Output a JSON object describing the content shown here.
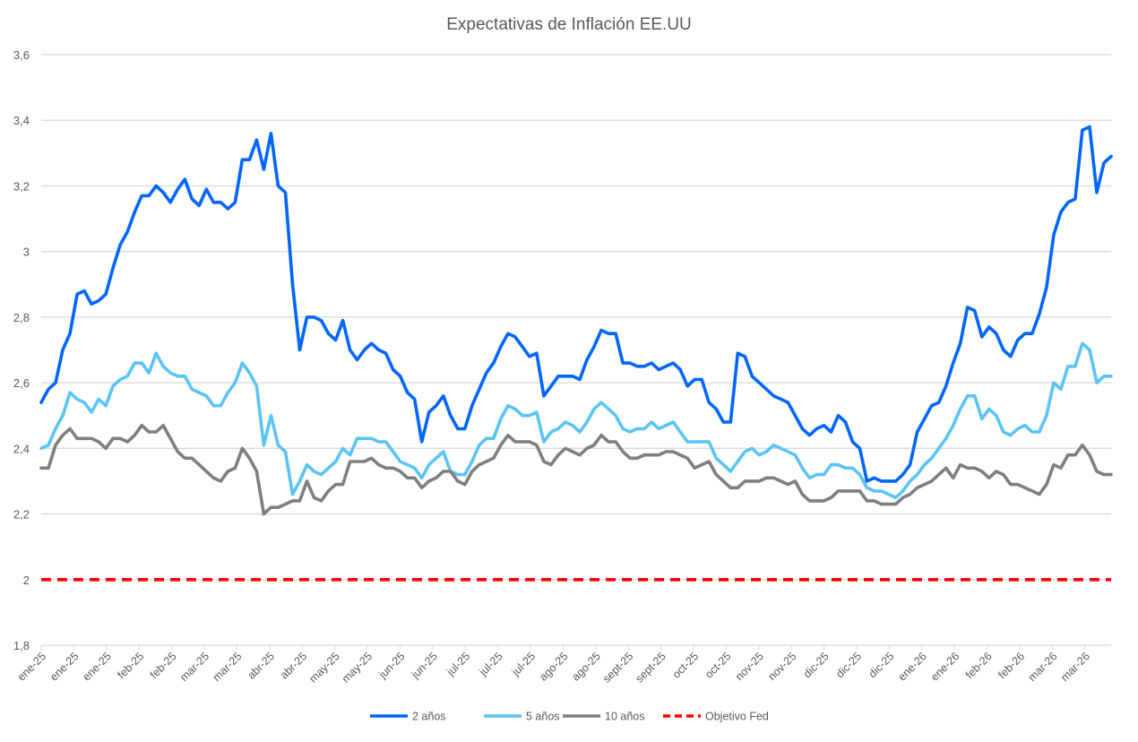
{
  "chart_data": {
    "type": "line",
    "title": "Expectativas de Inflación EE.UU",
    "xlabel": "",
    "ylabel": "",
    "ylim": [
      1.8,
      3.6
    ],
    "yticks": [
      "1,8",
      "2",
      "2,2",
      "2,4",
      "2,6",
      "2,8",
      "3",
      "3,2",
      "3,4",
      "3,6"
    ],
    "ytick_values": [
      1.8,
      2.0,
      2.2,
      2.4,
      2.6,
      2.8,
      3.0,
      3.2,
      3.4,
      3.6
    ],
    "grid": true,
    "legend_position": "bottom",
    "x_tick_labels": [
      "ene-25",
      "ene-25",
      "ene-25",
      "feb-25",
      "feb-25",
      "mar-25",
      "mar-25",
      "abr-25",
      "abr-25",
      "may-25",
      "may-25",
      "jun-25",
      "jun-25",
      "jul-25",
      "jul-25",
      "jul-25",
      "ago-25",
      "ago-25",
      "sept-25",
      "sept-25",
      "oct-25",
      "oct-25",
      "nov-25",
      "nov-25",
      "dic-25",
      "dic-25",
      "dic-25",
      "ene-26",
      "ene-26",
      "feb-26",
      "feb-26",
      "mar-26",
      "mar-26"
    ],
    "series": [
      {
        "name": "2 años",
        "color": "#0066FF",
        "style": "solid",
        "values": [
          2.54,
          2.58,
          2.6,
          2.7,
          2.75,
          2.87,
          2.88,
          2.84,
          2.85,
          2.87,
          2.95,
          3.02,
          3.06,
          3.12,
          3.17,
          3.17,
          3.2,
          3.18,
          3.15,
          3.19,
          3.22,
          3.16,
          3.14,
          3.19,
          3.15,
          3.15,
          3.13,
          3.15,
          3.28,
          3.28,
          3.34,
          3.25,
          3.36,
          3.2,
          3.18,
          2.9,
          2.7,
          2.8,
          2.8,
          2.79,
          2.75,
          2.73,
          2.79,
          2.7,
          2.67,
          2.7,
          2.72,
          2.7,
          2.69,
          2.64,
          2.62,
          2.57,
          2.55,
          2.42,
          2.51,
          2.53,
          2.56,
          2.5,
          2.46,
          2.46,
          2.53,
          2.58,
          2.63,
          2.66,
          2.71,
          2.75,
          2.74,
          2.71,
          2.68,
          2.69,
          2.56,
          2.59,
          2.62,
          2.62,
          2.62,
          2.61,
          2.67,
          2.71,
          2.76,
          2.75,
          2.75,
          2.66,
          2.66,
          2.65,
          2.65,
          2.66,
          2.64,
          2.65,
          2.66,
          2.64,
          2.59,
          2.61,
          2.61,
          2.54,
          2.52,
          2.48,
          2.48,
          2.69,
          2.68,
          2.62,
          2.6,
          2.58,
          2.56,
          2.55,
          2.54,
          2.5,
          2.46,
          2.44,
          2.46,
          2.47,
          2.45,
          2.5,
          2.48,
          2.42,
          2.4,
          2.3,
          2.31,
          2.3,
          2.3,
          2.3,
          2.32,
          2.35,
          2.45,
          2.49,
          2.53,
          2.54,
          2.59,
          2.66,
          2.72,
          2.83,
          2.82,
          2.74,
          2.77,
          2.75,
          2.7,
          2.68,
          2.73,
          2.75,
          2.75,
          2.81,
          2.89,
          3.05,
          3.12,
          3.15,
          3.16,
          3.37,
          3.38,
          3.18,
          3.27,
          3.29
        ]
      },
      {
        "name": "5 años",
        "color": "#5BC4F5",
        "style": "solid",
        "values": [
          2.4,
          2.41,
          2.46,
          2.5,
          2.57,
          2.55,
          2.54,
          2.51,
          2.55,
          2.53,
          2.59,
          2.61,
          2.62,
          2.66,
          2.66,
          2.63,
          2.69,
          2.65,
          2.63,
          2.62,
          2.62,
          2.58,
          2.57,
          2.56,
          2.53,
          2.53,
          2.57,
          2.6,
          2.66,
          2.63,
          2.59,
          2.41,
          2.5,
          2.41,
          2.39,
          2.26,
          2.3,
          2.35,
          2.33,
          2.32,
          2.34,
          2.36,
          2.4,
          2.38,
          2.43,
          2.43,
          2.43,
          2.42,
          2.42,
          2.39,
          2.36,
          2.35,
          2.34,
          2.31,
          2.35,
          2.37,
          2.39,
          2.33,
          2.32,
          2.32,
          2.36,
          2.41,
          2.43,
          2.43,
          2.49,
          2.53,
          2.52,
          2.5,
          2.5,
          2.51,
          2.42,
          2.45,
          2.46,
          2.48,
          2.47,
          2.45,
          2.48,
          2.52,
          2.54,
          2.52,
          2.5,
          2.46,
          2.45,
          2.46,
          2.46,
          2.48,
          2.46,
          2.47,
          2.48,
          2.45,
          2.42,
          2.42,
          2.42,
          2.42,
          2.37,
          2.35,
          2.33,
          2.36,
          2.39,
          2.4,
          2.38,
          2.39,
          2.41,
          2.4,
          2.39,
          2.38,
          2.34,
          2.31,
          2.32,
          2.32,
          2.35,
          2.35,
          2.34,
          2.34,
          2.32,
          2.28,
          2.27,
          2.27,
          2.26,
          2.25,
          2.27,
          2.3,
          2.32,
          2.35,
          2.37,
          2.4,
          2.43,
          2.47,
          2.52,
          2.56,
          2.56,
          2.49,
          2.52,
          2.5,
          2.45,
          2.44,
          2.46,
          2.47,
          2.45,
          2.45,
          2.5,
          2.6,
          2.58,
          2.65,
          2.65,
          2.72,
          2.7,
          2.6,
          2.62,
          2.62
        ]
      },
      {
        "name": "10 años",
        "color": "#7F7F7F",
        "style": "solid",
        "values": [
          2.34,
          2.34,
          2.41,
          2.44,
          2.46,
          2.43,
          2.43,
          2.43,
          2.42,
          2.4,
          2.43,
          2.43,
          2.42,
          2.44,
          2.47,
          2.45,
          2.45,
          2.47,
          2.43,
          2.39,
          2.37,
          2.37,
          2.35,
          2.33,
          2.31,
          2.3,
          2.33,
          2.34,
          2.4,
          2.37,
          2.33,
          2.2,
          2.22,
          2.22,
          2.23,
          2.24,
          2.24,
          2.3,
          2.25,
          2.24,
          2.27,
          2.29,
          2.29,
          2.36,
          2.36,
          2.36,
          2.37,
          2.35,
          2.34,
          2.34,
          2.33,
          2.31,
          2.31,
          2.28,
          2.3,
          2.31,
          2.33,
          2.33,
          2.3,
          2.29,
          2.33,
          2.35,
          2.36,
          2.37,
          2.41,
          2.44,
          2.42,
          2.42,
          2.42,
          2.41,
          2.36,
          2.35,
          2.38,
          2.4,
          2.39,
          2.38,
          2.4,
          2.41,
          2.44,
          2.42,
          2.42,
          2.39,
          2.37,
          2.37,
          2.38,
          2.38,
          2.38,
          2.39,
          2.39,
          2.38,
          2.37,
          2.34,
          2.35,
          2.36,
          2.32,
          2.3,
          2.28,
          2.28,
          2.3,
          2.3,
          2.3,
          2.31,
          2.31,
          2.3,
          2.29,
          2.3,
          2.26,
          2.24,
          2.24,
          2.24,
          2.25,
          2.27,
          2.27,
          2.27,
          2.27,
          2.24,
          2.24,
          2.23,
          2.23,
          2.23,
          2.25,
          2.26,
          2.28,
          2.29,
          2.3,
          2.32,
          2.34,
          2.31,
          2.35,
          2.34,
          2.34,
          2.33,
          2.31,
          2.33,
          2.32,
          2.29,
          2.29,
          2.28,
          2.27,
          2.26,
          2.29,
          2.35,
          2.34,
          2.38,
          2.38,
          2.41,
          2.38,
          2.33,
          2.32,
          2.32
        ]
      },
      {
        "name": "Objetivo Fed",
        "color": "#FF0000",
        "style": "dashed",
        "constant": 2.0
      }
    ]
  }
}
